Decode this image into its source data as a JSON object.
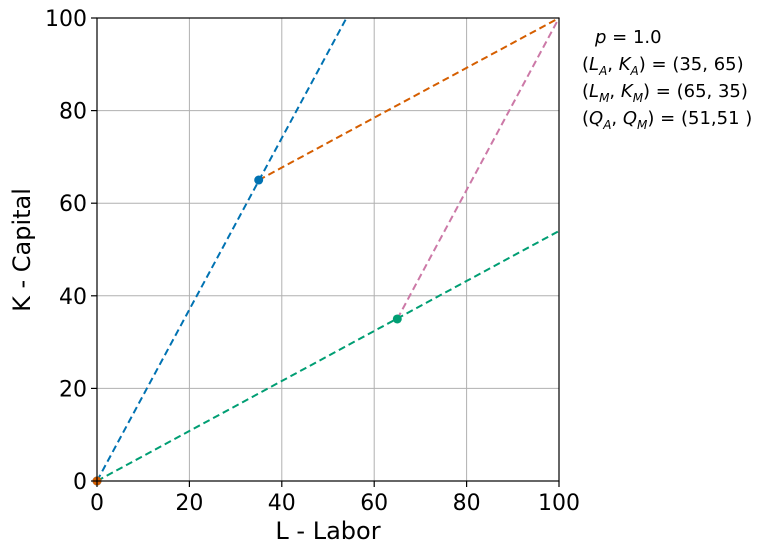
{
  "chart_data": {
    "type": "line",
    "xlabel": "L - Labor",
    "ylabel": "K - Capital",
    "xlim": [
      0,
      100
    ],
    "ylim": [
      0,
      100
    ],
    "xticks": [
      0,
      20,
      40,
      60,
      80,
      100
    ],
    "yticks": [
      0,
      20,
      40,
      60,
      80,
      100
    ],
    "grid": true,
    "series": [
      {
        "name": "ray-A",
        "color": "#0072b2",
        "style": "dashed",
        "points": [
          [
            0,
            0
          ],
          [
            54,
            100
          ]
        ]
      },
      {
        "name": "ray-M",
        "color": "#009e73",
        "style": "dashed",
        "points": [
          [
            0,
            0
          ],
          [
            100,
            54
          ]
        ]
      },
      {
        "name": "link-A-top",
        "color": "#d55e00",
        "style": "dashed",
        "points": [
          [
            35,
            65
          ],
          [
            100,
            100
          ]
        ]
      },
      {
        "name": "link-M-top",
        "color": "#cc79a7",
        "style": "dashed",
        "points": [
          [
            65,
            35
          ],
          [
            100,
            100
          ]
        ]
      }
    ],
    "points": [
      {
        "name": "allocation-A",
        "x": 35,
        "y": 65,
        "color": "#0072b2"
      },
      {
        "name": "allocation-M",
        "x": 65,
        "y": 35,
        "color": "#009e73"
      },
      {
        "name": "origin-A",
        "x": 0,
        "y": 0,
        "color": "#0072b2"
      },
      {
        "name": "origin-M",
        "x": 0,
        "y": 0,
        "color": "#d55e00"
      }
    ],
    "annotations": {
      "price": {
        "symbol": "p",
        "rest": " = 1.0"
      },
      "alloc_a": {
        "v1": "L",
        "s1": "A",
        "v2": "K",
        "s2": "A",
        "rest": " = (35, 65)"
      },
      "alloc_m": {
        "v1": "L",
        "s1": "M",
        "v2": "K",
        "s2": "M",
        "rest": " = (65, 35)"
      },
      "output": {
        "v1": "Q",
        "s1": "A",
        "v2": "Q",
        "s2": "M",
        "rest": " = (51,51 )"
      }
    }
  }
}
